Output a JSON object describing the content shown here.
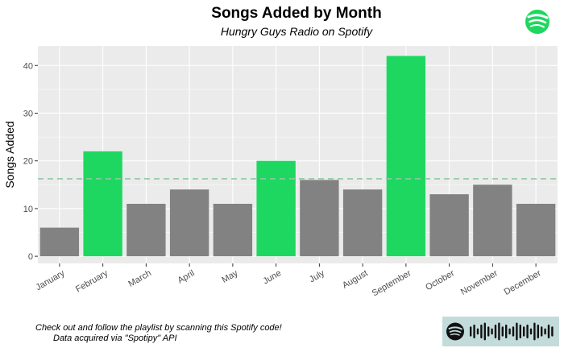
{
  "chart_data": {
    "type": "bar",
    "title": "Songs Added by Month",
    "subtitle": "Hungry Guys Radio on Spotify",
    "xlabel": "",
    "ylabel": "Songs Added",
    "categories": [
      "January",
      "February",
      "March",
      "April",
      "May",
      "June",
      "July",
      "August",
      "September",
      "October",
      "November",
      "December"
    ],
    "values": [
      6,
      22,
      11,
      14,
      11,
      20,
      16,
      14,
      42,
      13,
      15,
      11
    ],
    "highlighted": [
      "February",
      "June",
      "September"
    ],
    "mean_line": 16.25,
    "ylim": [
      -1.5,
      44.1
    ],
    "yticks": [
      0,
      10,
      20,
      30,
      40
    ],
    "grid": true,
    "colors": {
      "bar": "#828282",
      "highlight": "#1ed760",
      "mean_line": "#8fc7a8",
      "panel": "#ebebeb",
      "grid": "#ffffff",
      "code_bg": "#c4dbdb"
    }
  },
  "caption": {
    "line1": "Check out and follow the playlist by scanning this Spotify code!",
    "line2": "Data acquired via \"Spotipy\" API"
  },
  "logo": {
    "icon": "spotify-logo-icon"
  },
  "spotify_code": {
    "icon": "spotify-code-icon",
    "bar_levels": [
      2,
      3,
      1,
      3,
      4,
      2,
      1,
      3,
      4,
      2,
      3,
      1,
      2,
      4,
      3,
      2,
      3,
      1,
      4,
      3,
      2,
      1,
      3,
      2
    ]
  }
}
